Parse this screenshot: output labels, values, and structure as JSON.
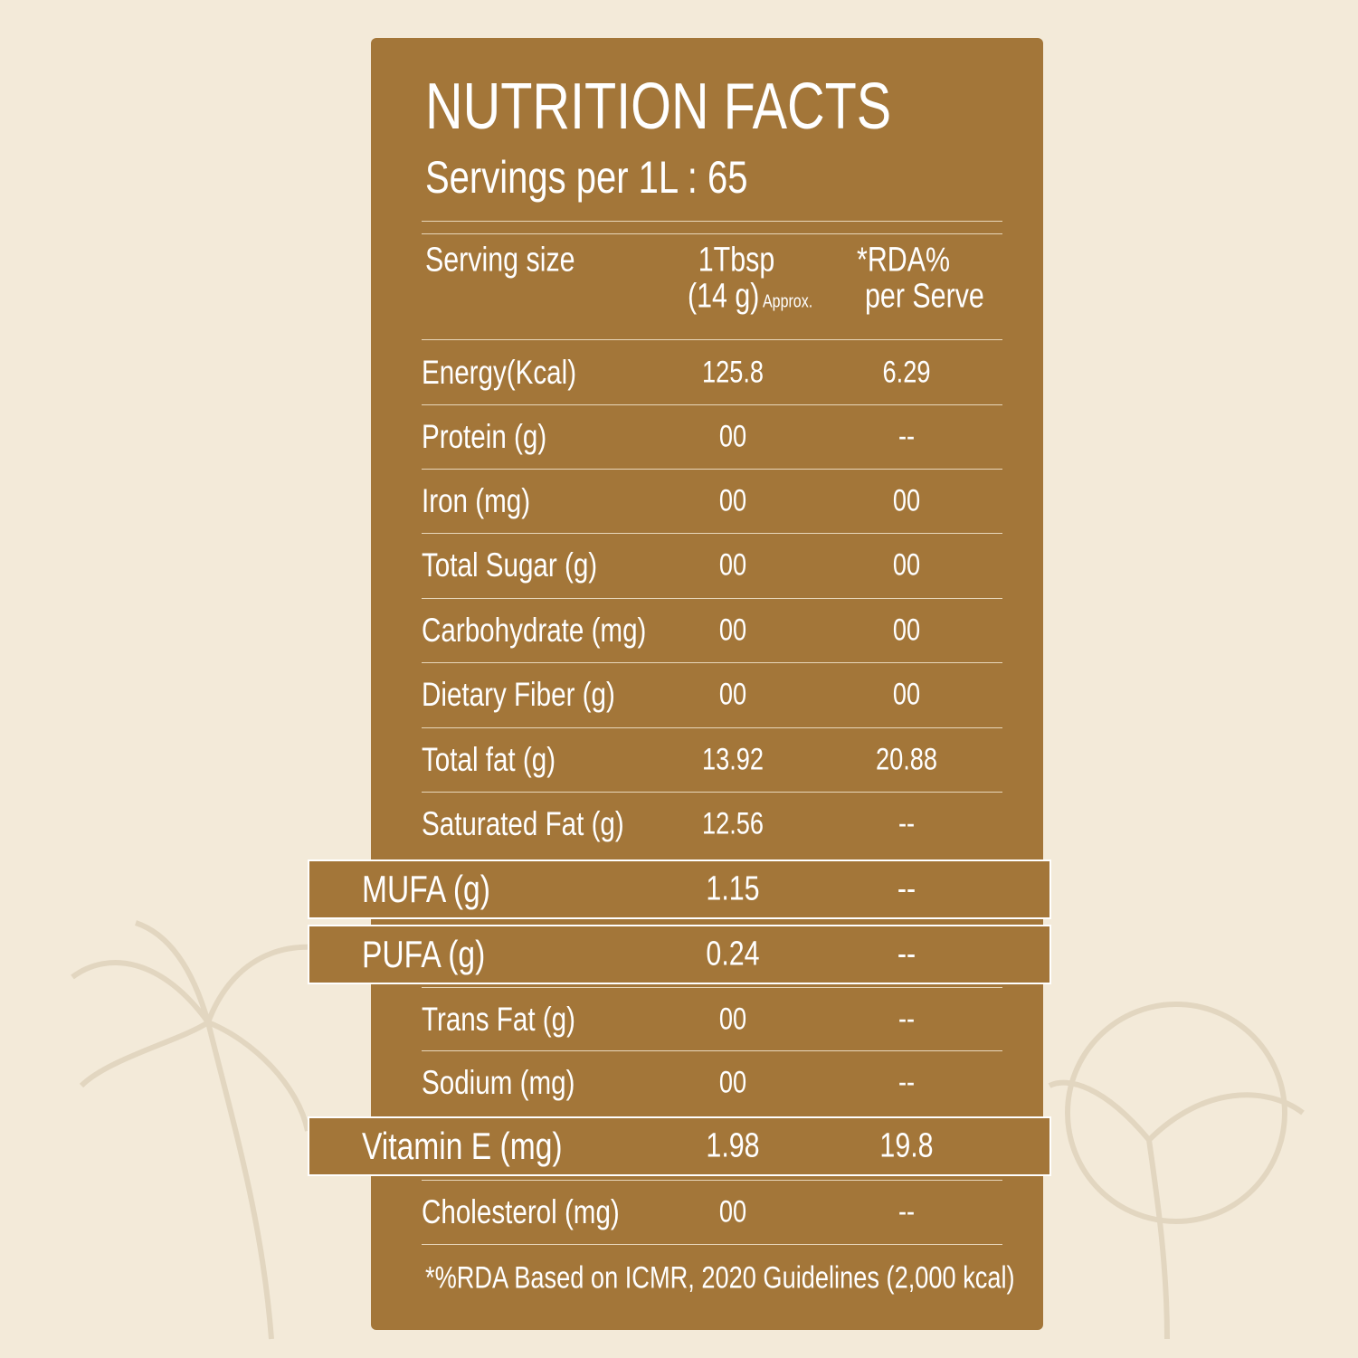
{
  "header": {
    "title": "NUTRITION FACTS",
    "servings": "Servings per 1L : 65"
  },
  "serving": {
    "label": "Serving size",
    "amount": "1Tbsp",
    "grams": "(14 g)",
    "approx": "Approx.",
    "rda": "*RDA%",
    "rda_sub": "per Serve"
  },
  "table": {
    "rows": [
      {
        "label": "Energy(Kcal)",
        "amount": "125.8",
        "rda": "6.29"
      },
      {
        "label": "Protein (g)",
        "amount": "00",
        "rda": "--"
      },
      {
        "label": "Iron (mg)",
        "amount": "00",
        "rda": "00"
      },
      {
        "label": "Total Sugar (g)",
        "amount": "00",
        "rda": "00"
      },
      {
        "label": "Carbohydrate (mg)",
        "amount": "00",
        "rda": "00"
      },
      {
        "label": "Dietary Fiber (g)",
        "amount": "00",
        "rda": "00"
      },
      {
        "label": "Total fat (g)",
        "amount": "13.92",
        "rda": "20.88"
      },
      {
        "label": "Saturated Fat (g)",
        "amount": "12.56",
        "rda": "--"
      },
      {
        "label": "MUFA (g)",
        "amount": "1.15",
        "rda": "--",
        "highlighted": true
      },
      {
        "label": "PUFA (g)",
        "amount": "0.24",
        "rda": "--",
        "highlighted": true
      },
      {
        "label": "Trans Fat (g)",
        "amount": "00",
        "rda": "--"
      },
      {
        "label": "Sodium (mg)",
        "amount": "00",
        "rda": "--"
      },
      {
        "label": "Vitamin E (mg)",
        "amount": "1.98",
        "rda": "19.8",
        "highlighted": true
      },
      {
        "label": "Cholesterol (mg)",
        "amount": "00",
        "rda": "--"
      }
    ]
  },
  "footnote": "*%RDA Based on ICMR, 2020 Guidelines (2,000 kcal)"
}
